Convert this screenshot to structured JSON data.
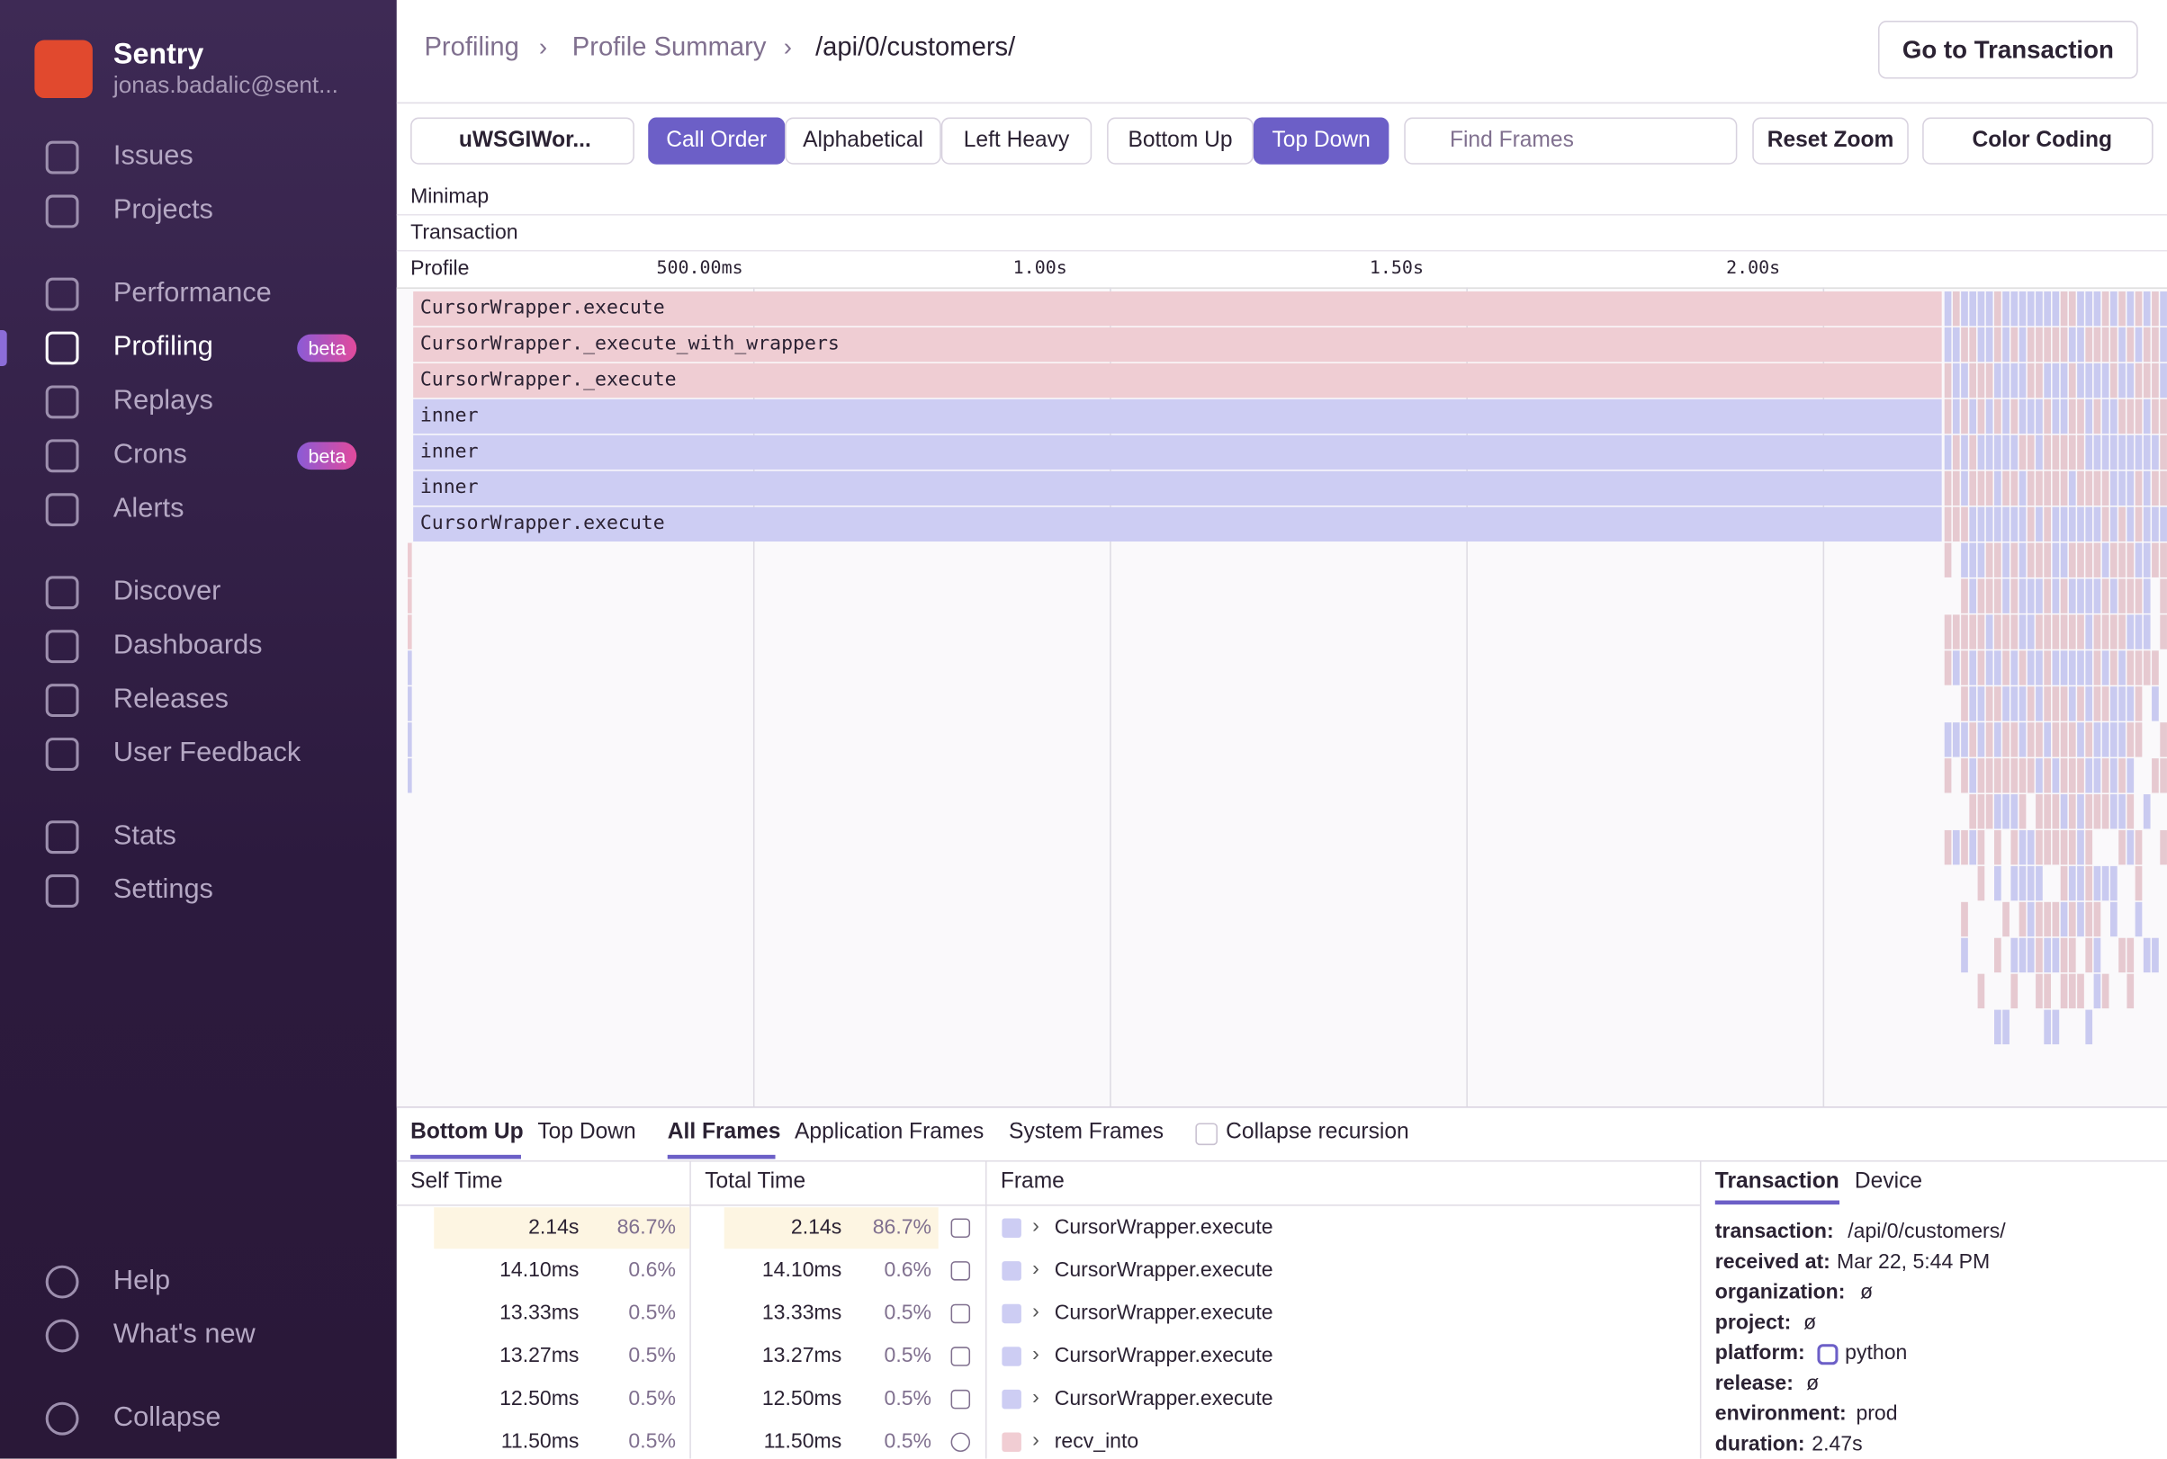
{
  "sidebar": {
    "org": "Sentry",
    "user": "jonas.badalic@sent...",
    "nav": [
      {
        "label": "Issues"
      },
      {
        "label": "Projects"
      },
      {
        "label": "Performance"
      },
      {
        "label": "Profiling",
        "badge": "beta"
      },
      {
        "label": "Replays"
      },
      {
        "label": "Crons",
        "badge": "beta"
      },
      {
        "label": "Alerts"
      },
      {
        "label": "Discover"
      },
      {
        "label": "Dashboards"
      },
      {
        "label": "Releases"
      },
      {
        "label": "User Feedback"
      },
      {
        "label": "Stats"
      },
      {
        "label": "Settings"
      }
    ],
    "footer": [
      "Help",
      "What's new",
      "Collapse"
    ]
  },
  "header": {
    "breadcrumbs": [
      "Profiling",
      "Profile Summary",
      "/api/0/customers/"
    ],
    "button": "Go to Transaction"
  },
  "toolbar": {
    "thread": "uWSGIWor...",
    "sort": [
      "Call Order",
      "Alphabetical",
      "Left Heavy"
    ],
    "view": [
      "Bottom Up",
      "Top Down"
    ],
    "search": "Find Frames",
    "reset": "Reset Zoom",
    "color": "Color Coding"
  },
  "sections": [
    "Minimap",
    "Transaction"
  ],
  "profile": {
    "label": "Profile",
    "ticks": [
      "500.00ms",
      "1.00s",
      "1.50s",
      "2.00s"
    ],
    "frames": [
      "CursorWrapper.execute",
      "CursorWrapper._execute_with_wrappers",
      "CursorWrapper._execute",
      "inner",
      "inner",
      "inner",
      "CursorWrapper.execute"
    ]
  },
  "bottom": {
    "tabs": [
      "Bottom Up",
      "Top Down"
    ],
    "filters": [
      "All Frames",
      "Application Frames",
      "System Frames"
    ],
    "checkbox": "Collapse recursion",
    "columns": [
      "Self Time",
      "Total Time",
      "Frame"
    ],
    "rows": [
      [
        "2.14s",
        "86.7%",
        "2.14s",
        "86.7%",
        "CursorWrapper.execute"
      ],
      [
        "14.10ms",
        "0.6%",
        "14.10ms",
        "0.6%",
        "CursorWrapper.execute"
      ],
      [
        "13.33ms",
        "0.5%",
        "13.33ms",
        "0.5%",
        "CursorWrapper.execute"
      ],
      [
        "13.27ms",
        "0.5%",
        "13.27ms",
        "0.5%",
        "CursorWrapper.execute"
      ],
      [
        "12.50ms",
        "0.5%",
        "12.50ms",
        "0.5%",
        "CursorWrapper.execute"
      ],
      [
        "11.50ms",
        "0.5%",
        "11.50ms",
        "0.5%",
        "recv_into"
      ]
    ]
  },
  "details": {
    "tabs": [
      "Transaction",
      "Device"
    ],
    "fields": [
      [
        "transaction:",
        "/api/0/customers/"
      ],
      [
        "received at:",
        "Mar 22, 5:44 PM"
      ],
      [
        "organization:",
        "ø"
      ],
      [
        "project:",
        "ø"
      ],
      [
        "platform:",
        "python"
      ],
      [
        "release:",
        "ø"
      ],
      [
        "environment:",
        "prod"
      ],
      [
        "duration:",
        "2.47s"
      ]
    ]
  }
}
